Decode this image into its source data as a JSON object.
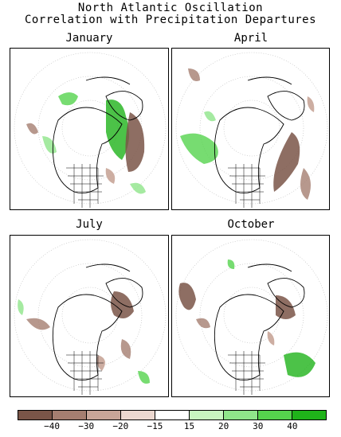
{
  "title_line1": "North Atlantic Oscillation",
  "title_line2": "Correlation with Precipitation Departures",
  "panels": [
    {
      "label": "January"
    },
    {
      "label": "April"
    },
    {
      "label": "July"
    },
    {
      "label": "October"
    }
  ],
  "legend": {
    "colors": [
      "#7a5548",
      "#a57e70",
      "#c8a598",
      "#ecd8d0",
      "#ffffff",
      "#c8f5c0",
      "#8fe58a",
      "#55d34d",
      "#1fb31a"
    ],
    "ticks": [
      "-40",
      "-30",
      "-20",
      "-15",
      "15",
      "20",
      "30",
      "40"
    ]
  }
}
